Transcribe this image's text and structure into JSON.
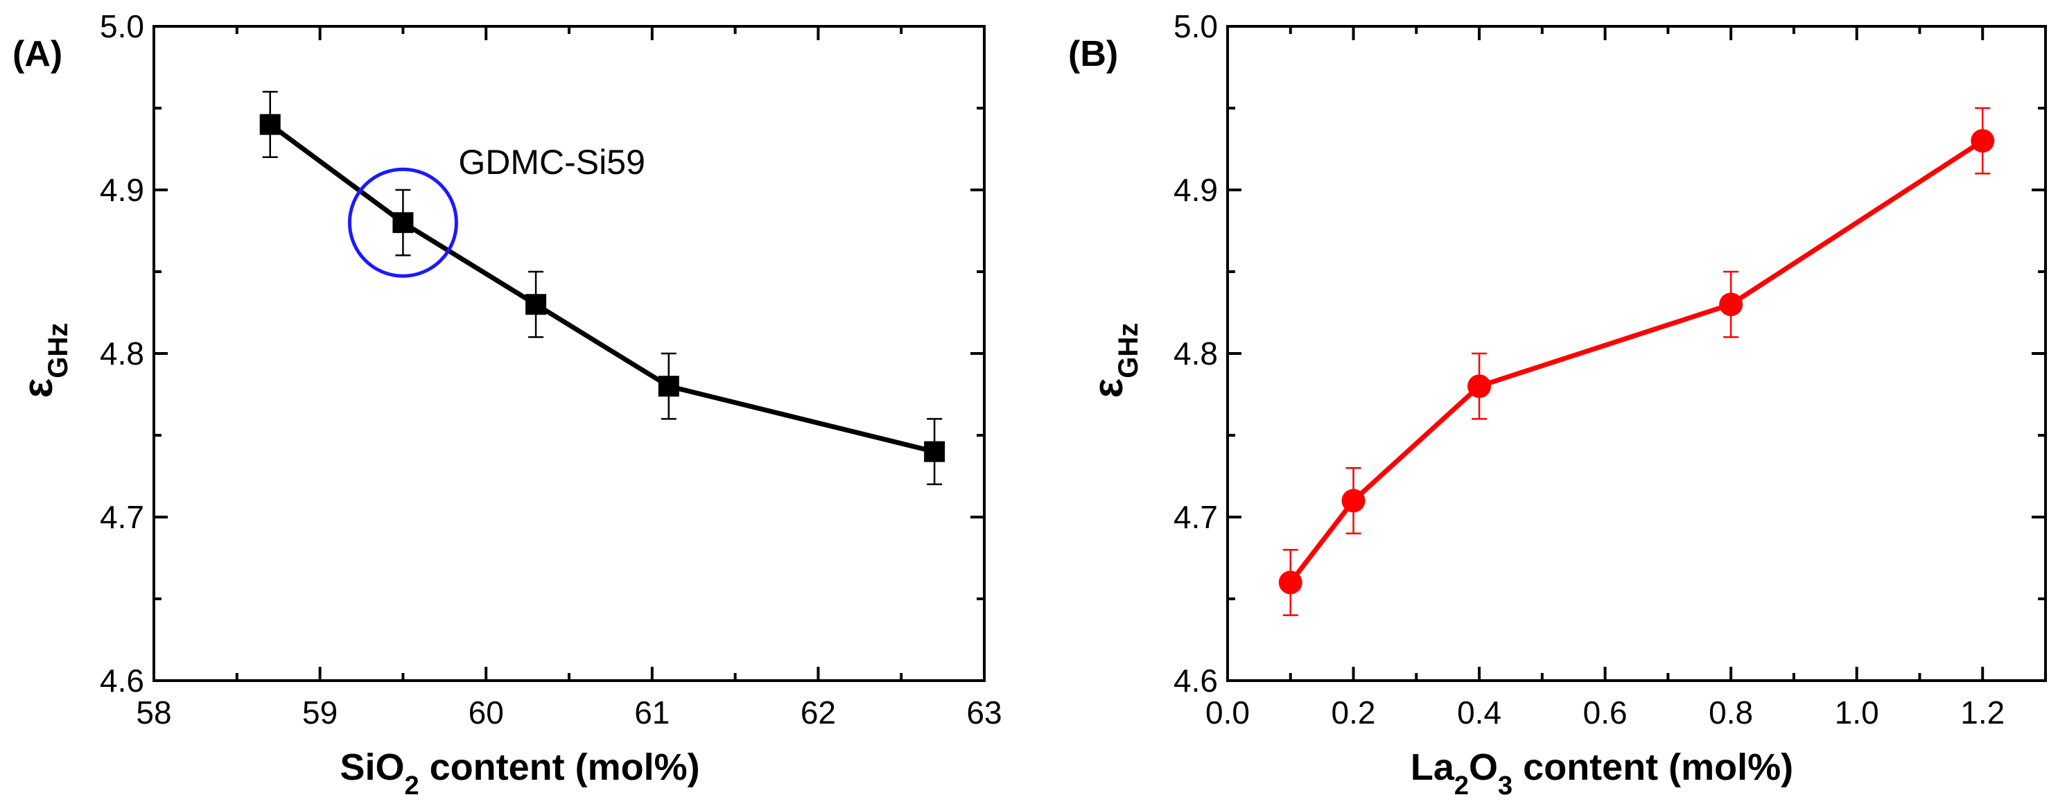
{
  "chart_data": [
    {
      "type": "line",
      "panel_label": "(A)",
      "xlabel": "SiO",
      "xlabel_sub": "2",
      "xlabel_rest": " content (mol%)",
      "ylabel": "ε",
      "ylabel_sub": "GHz",
      "xlim": [
        58,
        63
      ],
      "ylim": [
        4.6,
        5.0
      ],
      "xticks": [
        58,
        59,
        60,
        61,
        62,
        63
      ],
      "xtick_labels": [
        "58",
        "59",
        "60",
        "61",
        "62",
        "63"
      ],
      "yticks": [
        4.6,
        4.7,
        4.8,
        4.9,
        5.0
      ],
      "ytick_labels": [
        "4.6",
        "4.7",
        "4.8",
        "4.9",
        "5.0"
      ],
      "series": [
        {
          "name": "εGHz",
          "color": "#000000",
          "marker": "square",
          "x": [
            58.7,
            59.5,
            60.3,
            61.1,
            62.7
          ],
          "y": [
            4.94,
            4.88,
            4.83,
            4.78,
            4.74
          ],
          "err": [
            0.02,
            0.02,
            0.02,
            0.02,
            0.02
          ]
        }
      ],
      "annotations": [
        {
          "text": "GDMC-Si59",
          "highlight_x": 59.5,
          "highlight_y": 4.88,
          "highlight_color": "#1a1aff"
        }
      ]
    },
    {
      "type": "line",
      "panel_label": "(B)",
      "xlabel": "La",
      "xlabel_sub": "2",
      "xlabel_mid": "O",
      "xlabel_sub2": "3",
      "xlabel_rest": " content (mol%)",
      "ylabel": "ε",
      "ylabel_sub": "GHz",
      "xlim": [
        0.0,
        1.3
      ],
      "ylim": [
        4.6,
        5.0
      ],
      "xticks": [
        0.0,
        0.2,
        0.4,
        0.6,
        0.8,
        1.0,
        1.2
      ],
      "xtick_labels": [
        "0.0",
        "0.2",
        "0.4",
        "0.6",
        "0.8",
        "1.0",
        "1.2"
      ],
      "yticks": [
        4.6,
        4.7,
        4.8,
        4.9,
        5.0
      ],
      "ytick_labels": [
        "4.6",
        "4.7",
        "4.8",
        "4.9",
        "5.0"
      ],
      "series": [
        {
          "name": "εGHz",
          "color": "#ff0000",
          "marker": "circle",
          "x": [
            0.1,
            0.2,
            0.4,
            0.8,
            1.2
          ],
          "y": [
            4.66,
            4.71,
            4.78,
            4.83,
            4.93
          ],
          "err": [
            0.02,
            0.02,
            0.02,
            0.02,
            0.02
          ]
        }
      ]
    }
  ]
}
